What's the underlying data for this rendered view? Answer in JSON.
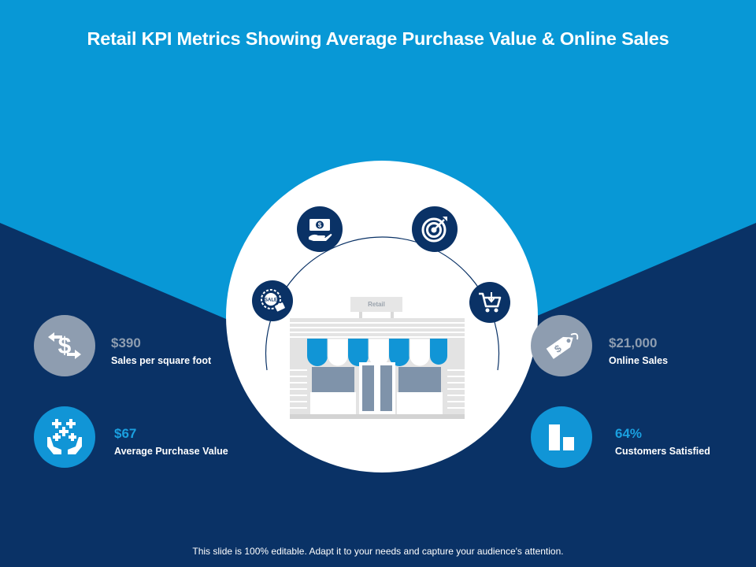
{
  "slide": {
    "title": "Retail KPI Metrics Showing Average Purchase Value & Online Sales",
    "footer": "This slide is 100% editable. Adapt it to your needs and capture your audience's attention."
  },
  "colors": {
    "top_background": "#0898d6",
    "bottom_background": "#0a3266",
    "gray_accent": "#8e9db0",
    "blue_accent": "#1195d6"
  },
  "kpis": [
    {
      "value": "$390",
      "label": "Sales per square foot",
      "icon": "dollar-transfer-icon"
    },
    {
      "value": "$67",
      "label": "Average Purchase Value",
      "icon": "hands-sparkle-icon"
    },
    {
      "value": "$21,000",
      "label": "Online Sales",
      "icon": "price-tag-icon"
    },
    {
      "value": "64%",
      "label": "Customers Satisfied",
      "icon": "bar-chart-icon"
    }
  ],
  "center": {
    "store_sign": "Retail",
    "orbit_icons": [
      "sale-badge-icon",
      "cash-hand-icon",
      "target-icon",
      "shopping-cart-icon"
    ],
    "sale_badge_text": "SALE"
  }
}
